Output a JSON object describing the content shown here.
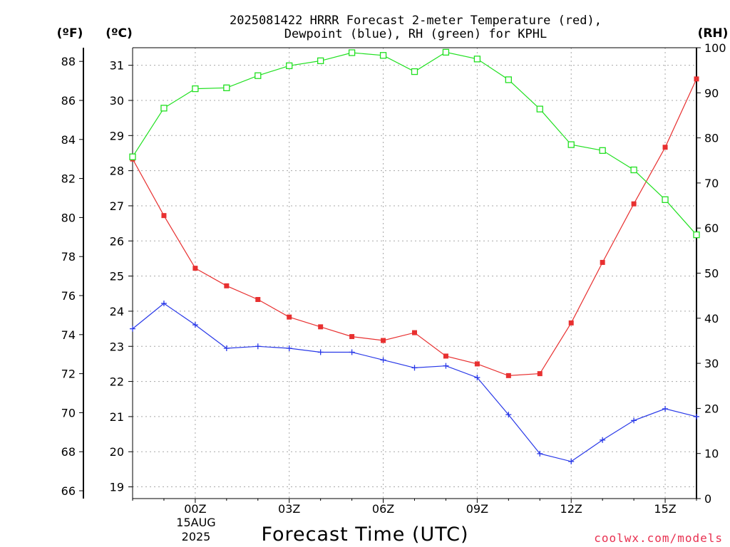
{
  "chart_data": {
    "type": "line",
    "title_line1": "2025081422 HRRR Forecast 2-meter Temperature (red),",
    "title_line2": "Dewpoint (blue), RH (green) for KPHL",
    "xlabel": "Forecast Time (UTC)",
    "left_axis_f_label": "(ºF)",
    "left_axis_c_label": "(ºC)",
    "right_axis_label": "(RH)",
    "date_label_day": "15AUG",
    "date_label_year": "2025",
    "credit": "coolwx.com/models",
    "x": [
      "22Z",
      "23Z",
      "00Z",
      "01Z",
      "02Z",
      "03Z",
      "04Z",
      "05Z",
      "06Z",
      "07Z",
      "08Z",
      "09Z",
      "10Z",
      "11Z",
      "12Z",
      "13Z",
      "14Z",
      "15Z",
      "16Z"
    ],
    "x_tick_labels": [
      "00Z",
      "03Z",
      "06Z",
      "09Z",
      "12Z",
      "15Z"
    ],
    "x_tick_positions": [
      2,
      5,
      8,
      11,
      14,
      17
    ],
    "y_left_f_ticks": [
      66,
      68,
      70,
      72,
      74,
      76,
      78,
      80,
      82,
      84,
      86,
      88
    ],
    "y_left_c_ticks": [
      19,
      20,
      21,
      22,
      23,
      24,
      25,
      26,
      27,
      28,
      29,
      30,
      31
    ],
    "y_right_ticks": [
      0,
      10,
      20,
      30,
      40,
      50,
      60,
      70,
      80,
      90,
      100
    ],
    "ylim_f": [
      65.6,
      88.7
    ],
    "ylim_rh": [
      0,
      100
    ],
    "grid": true,
    "series": [
      {
        "name": "Temperature",
        "unit": "F",
        "axis": "left",
        "color": "#e83030",
        "marker": "filled-square",
        "values": [
          83.0,
          80.1,
          77.4,
          76.5,
          75.8,
          74.9,
          74.4,
          73.9,
          73.7,
          74.1,
          72.9,
          72.5,
          71.9,
          72.0,
          74.6,
          77.7,
          80.7,
          83.6,
          87.1
        ]
      },
      {
        "name": "Dewpoint",
        "unit": "F",
        "axis": "left",
        "color": "#2838e8",
        "marker": "plus",
        "values": [
          74.3,
          75.6,
          74.5,
          73.3,
          73.4,
          73.3,
          73.1,
          73.1,
          72.7,
          72.3,
          72.4,
          71.8,
          69.9,
          67.9,
          67.5,
          68.6,
          69.6,
          70.2,
          69.8
        ]
      },
      {
        "name": "RH",
        "unit": "%",
        "axis": "right",
        "color": "#20e020",
        "marker": "open-square",
        "values": [
          75.8,
          86.6,
          90.9,
          91.1,
          93.8,
          96.0,
          97.1,
          98.9,
          98.3,
          94.7,
          99.0,
          97.5,
          92.9,
          86.4,
          78.5,
          77.2,
          72.9,
          66.3,
          58.5
        ]
      }
    ]
  }
}
